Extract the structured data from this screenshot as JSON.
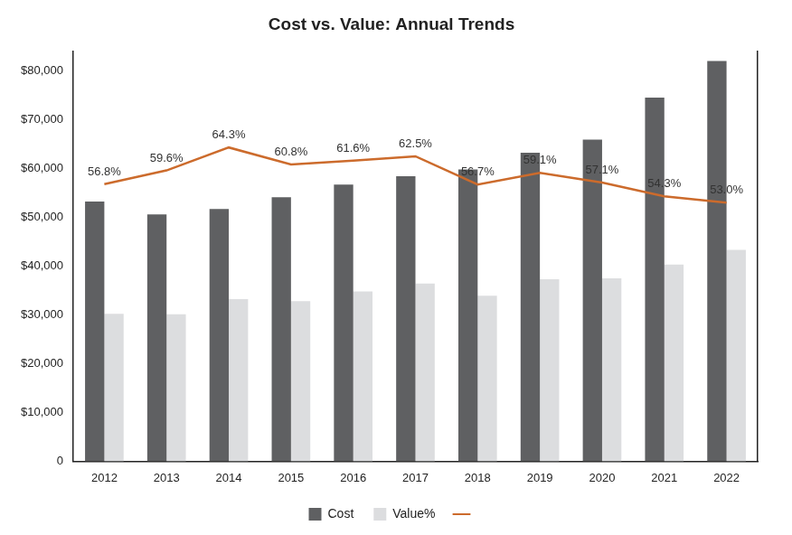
{
  "chart_data": {
    "type": "bar",
    "title": "Cost vs. Value: Annual Trends",
    "categories": [
      "2012",
      "2013",
      "2014",
      "2015",
      "2016",
      "2017",
      "2018",
      "2019",
      "2020",
      "2021",
      "2022"
    ],
    "series": [
      {
        "name": "Cost",
        "type": "bar",
        "color": "#5f6062",
        "values": [
          53200,
          50600,
          51700,
          54100,
          56700,
          58400,
          59800,
          63200,
          65900,
          74500,
          82000
        ]
      },
      {
        "name": "Value%",
        "type": "bar",
        "color": "#dcdddf",
        "values": [
          30200,
          30100,
          33200,
          32800,
          34800,
          36400,
          33900,
          37300,
          37500,
          40300,
          43300
        ]
      },
      {
        "type": "line",
        "color": "#cc6b2c",
        "axis": "y2",
        "data_labels": true,
        "values": [
          56.8,
          59.6,
          64.3,
          60.8,
          61.6,
          62.5,
          56.7,
          59.1,
          57.1,
          54.3,
          53.0
        ],
        "value_labels": [
          "56.8%",
          "59.6%",
          "64.3%",
          "60.8%",
          "61.6%",
          "62.5%",
          "56.7%",
          "59.1%",
          "57.1%",
          "54.3%",
          "53.0%"
        ]
      }
    ],
    "ylim": [
      0,
      84000
    ],
    "yticks": [
      0,
      {
        "value": 10000,
        "label": "$10,000"
      },
      {
        "value": 20000,
        "label": "$20,000"
      },
      {
        "value": 30000,
        "label": "$30,000"
      },
      {
        "value": 40000,
        "label": "$40,000"
      },
      {
        "value": 50000,
        "label": "$50,000"
      },
      {
        "value": 60000,
        "label": "$60,000"
      },
      {
        "value": 70000,
        "label": "$70,000"
      },
      {
        "value": 80000,
        "label": "$80,000"
      }
    ],
    "y2lim": [
      0,
      84
    ],
    "grid": false,
    "legend": "bottom"
  }
}
